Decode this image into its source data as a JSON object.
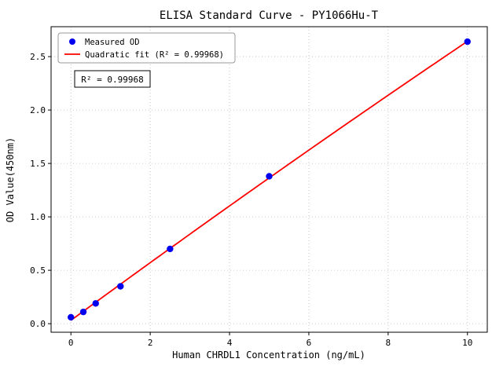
{
  "chart_data": {
    "type": "scatter",
    "title": "ELISA Standard Curve - PY1066Hu-T",
    "xlabel": "Human CHRDL1 Concentration (ng/mL)",
    "ylabel": "OD Value(450nm)",
    "xlim": [
      -0.5,
      10.5
    ],
    "ylim": [
      -0.08,
      2.78
    ],
    "xticks": [
      0,
      2,
      4,
      6,
      8,
      10
    ],
    "xtick_labels": [
      "0",
      "2",
      "4",
      "6",
      "8",
      "10"
    ],
    "yticks": [
      0,
      0.5,
      1.0,
      1.5,
      2.0,
      2.5
    ],
    "ytick_labels": [
      "0.0",
      "0.5",
      "1.0",
      "1.5",
      "2.0",
      "2.5"
    ],
    "grid": true,
    "legend_position": "upper left",
    "annotation": "R² = 0.99968",
    "series": [
      {
        "name": "Measured OD",
        "type": "scatter",
        "color": "#0000ee",
        "x": [
          0,
          0.313,
          0.625,
          1.25,
          2.5,
          5,
          10
        ],
        "y": [
          0.06,
          0.11,
          0.19,
          0.35,
          0.7,
          1.38,
          2.64
        ]
      },
      {
        "name": "Quadratic fit (R² = 0.99968)",
        "type": "line",
        "fit": "quadratic",
        "source_series": 0,
        "color": "#ff0000"
      }
    ]
  },
  "colors": {
    "grid": "#bbbbbb",
    "spine": "#000000",
    "scatter": "#0000ee",
    "fit_line": "#ff0000",
    "legend_border": "#999999",
    "annotation_border": "#000000"
  }
}
